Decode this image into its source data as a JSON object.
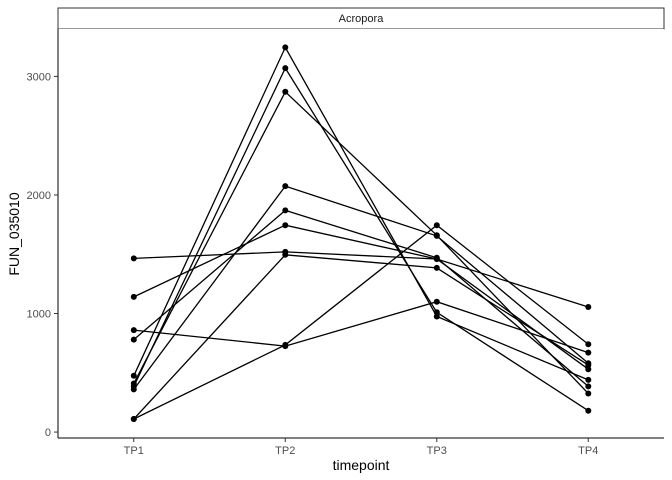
{
  "chart_data": {
    "type": "line",
    "panel_label": "Acropora",
    "xlabel": "timepoint",
    "ylabel": "FUN_035010",
    "categories": [
      "TP1",
      "TP2",
      "TP3",
      "TP4"
    ],
    "ylim": [
      -50,
      3400
    ],
    "yticks": [
      0,
      1000,
      2000,
      3000
    ],
    "ytick_labels": [
      "0",
      "1000",
      "2000",
      "3000"
    ],
    "grid": false,
    "legend": "none",
    "series": [
      {
        "values": [
          1465,
          1520,
          1460,
          1055
        ]
      },
      {
        "values": [
          1140,
          1745,
          1460,
          530
        ]
      },
      {
        "values": [
          860,
          725,
          1100,
          670
        ]
      },
      {
        "values": [
          780,
          1870,
          1470,
          385
        ]
      },
      {
        "values": [
          475,
          3245,
          975,
          440
        ]
      },
      {
        "values": [
          410,
          2870,
          1660,
          325
        ]
      },
      {
        "values": [
          385,
          3070,
          1010,
          180
        ]
      },
      {
        "values": [
          360,
          2075,
          1655,
          580
        ]
      },
      {
        "values": [
          110,
          735,
          1745,
          740
        ]
      },
      {
        "values": [
          110,
          1495,
          1385,
          565
        ]
      }
    ],
    "colors": {
      "line": "#000000",
      "point": "#000000",
      "axis": "#000000"
    }
  }
}
